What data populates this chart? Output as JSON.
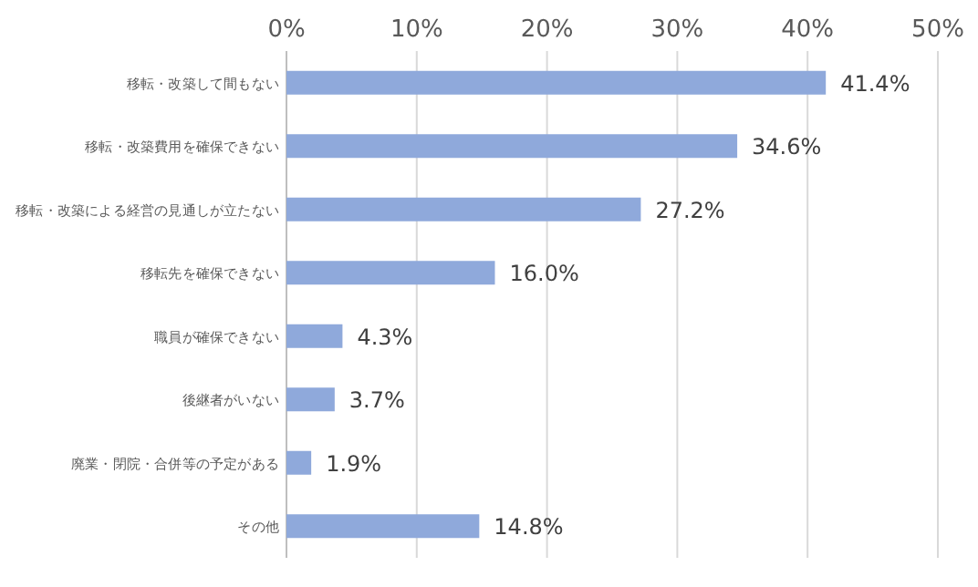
{
  "chart_data": {
    "type": "bar",
    "orientation": "horizontal",
    "categories": [
      "移転・改築して間もない",
      "移転・改築費用を確保できない",
      "移転・改築による経営の見通しが立たない",
      "移転先を確保できない",
      "職員が確保できない",
      "後継者がいない",
      "廃業・閉院・合併等の予定がある",
      "その他"
    ],
    "values": [
      41.4,
      34.6,
      27.2,
      16.0,
      4.3,
      3.7,
      1.9,
      14.8
    ],
    "value_labels": [
      "41.4%",
      "34.6%",
      "27.2%",
      "16.0%",
      "4.3%",
      "3.7%",
      "1.9%",
      "14.8%"
    ],
    "color": "#8fa9db",
    "xlim": [
      0,
      50
    ],
    "xticks": [
      {
        "value": 0,
        "label": "0%"
      },
      {
        "value": 10,
        "label": "10%"
      },
      {
        "value": 20,
        "label": "20%"
      },
      {
        "value": 30,
        "label": "30%"
      },
      {
        "value": 40,
        "label": "40%"
      },
      {
        "value": 50,
        "label": "50%"
      }
    ],
    "grid": "x"
  }
}
